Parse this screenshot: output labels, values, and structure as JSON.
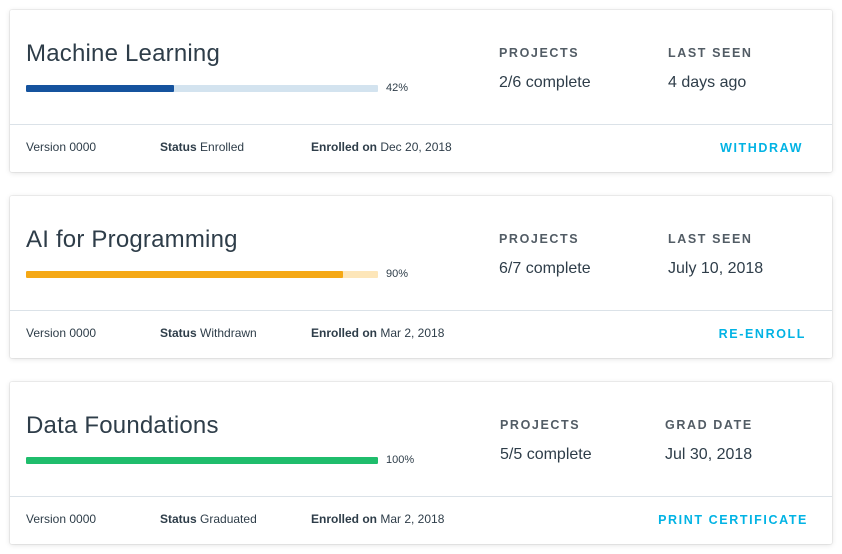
{
  "courses": [
    {
      "title": "Machine Learning",
      "progress": 0.42,
      "progress_text": "42%",
      "progress_color": "#15539e",
      "track_color": "#d3e3ef",
      "stat1_label": "PROJECTS",
      "stat1_value": "2/6 complete",
      "stat2_label": "LAST SEEN",
      "stat2_value": "4 days ago",
      "version": "Version 0000",
      "status_label": "Status",
      "status_value": "Enrolled",
      "enrolled_label": "Enrolled on",
      "enrolled_value": "Dec 20, 2018",
      "action": "WITHDRAW"
    },
    {
      "title": "AI for Programming",
      "progress": 0.9,
      "progress_text": "90%",
      "progress_color": "#f5a815",
      "track_color": "#fde6b9",
      "stat1_label": "PROJECTS",
      "stat1_value": "6/7 complete",
      "stat2_label": "LAST SEEN",
      "stat2_value": "July 10, 2018",
      "version": "Version 0000",
      "status_label": "Status",
      "status_value": "Withdrawn",
      "enrolled_label": "Enrolled on",
      "enrolled_value": "Mar 2, 2018",
      "action": "RE-ENROLL"
    },
    {
      "title": "Data Foundations",
      "progress": 1.0,
      "progress_text": "100%",
      "progress_color": "#1fbd6c",
      "track_color": "#c8f0da",
      "stat1_label": "PROJECTS",
      "stat1_value": "5/5 complete",
      "stat2_label": "GRAD DATE",
      "stat2_value": "Jul 30, 2018",
      "version": "Version 0000",
      "status_label": "Status",
      "status_value": "Graduated",
      "enrolled_label": "Enrolled on",
      "enrolled_value": "Mar 2, 2018",
      "action": "PRINT CERTIFICATE"
    }
  ]
}
